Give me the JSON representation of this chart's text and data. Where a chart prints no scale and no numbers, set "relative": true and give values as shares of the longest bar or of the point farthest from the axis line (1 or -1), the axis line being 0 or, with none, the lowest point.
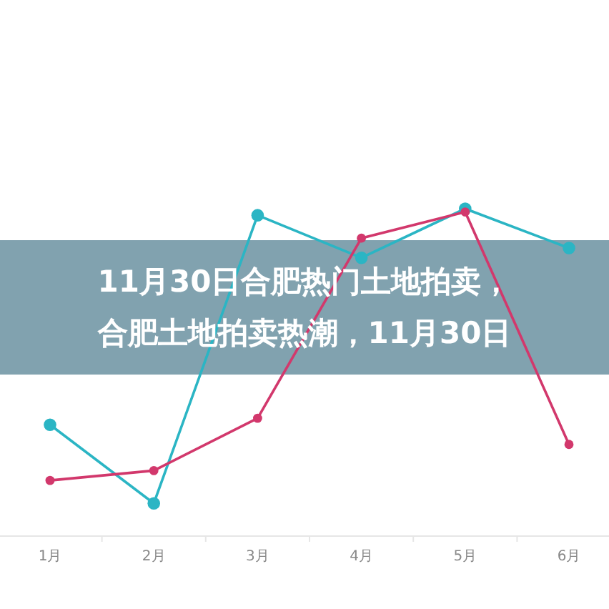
{
  "chart_data": {
    "type": "line",
    "title": "11月30日合肥热门土地拍卖，合肥土地拍卖热潮，11月30日",
    "relative": true,
    "marker": "circle",
    "categories": [
      "1月",
      "2月",
      "3月",
      "4月",
      "5月",
      "6月"
    ],
    "series": [
      {
        "color": "#2bb5c4",
        "values": [
          0.34,
          0.1,
          0.98,
          0.85,
          1.0,
          0.88
        ]
      },
      {
        "color": "#d2386c",
        "values": [
          0.17,
          0.2,
          0.36,
          0.91,
          0.99,
          0.28
        ]
      }
    ]
  }
}
